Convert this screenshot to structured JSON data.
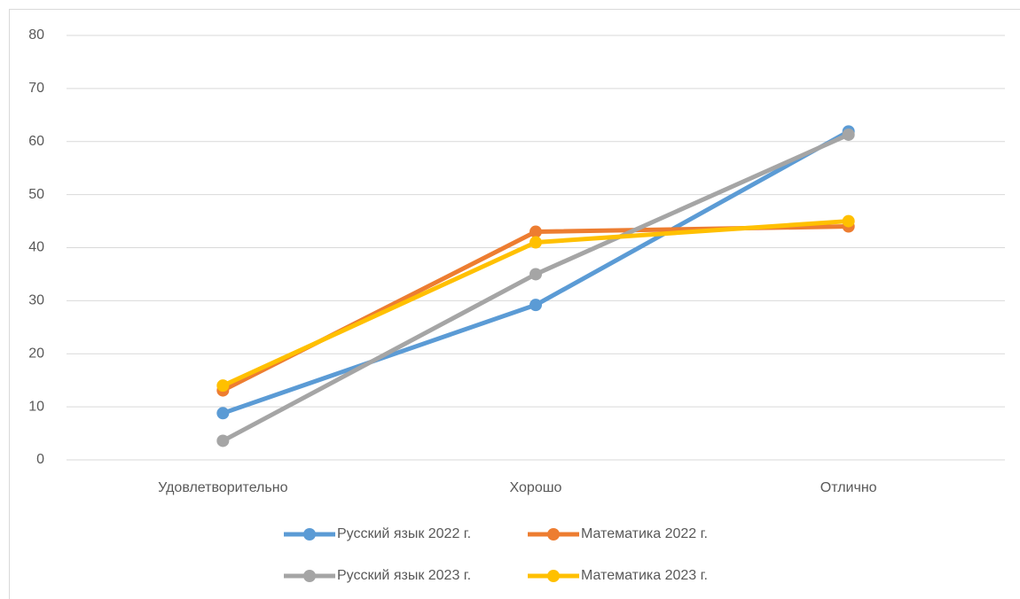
{
  "chart_data": {
    "type": "line",
    "categories": [
      "Удовлетворительно",
      "Хорошо",
      "Отлично"
    ],
    "series": [
      {
        "name": "Русский язык 2022 г.",
        "color": "#5b9bd5",
        "values": [
          8.8,
          29.2,
          61.9
        ]
      },
      {
        "name": "Математика 2022 г.",
        "color": "#ed7d31",
        "values": [
          13.1,
          43,
          44
        ]
      },
      {
        "name": "Русский язык 2023 г.",
        "color": "#a5a5a5",
        "values": [
          3.6,
          35,
          61.3
        ]
      },
      {
        "name": "Математика 2023 г.",
        "color": "#ffc000",
        "values": [
          14,
          41,
          45
        ]
      }
    ],
    "ylim": [
      0,
      80
    ],
    "yticks": [
      0,
      10,
      20,
      30,
      40,
      50,
      60,
      70,
      80
    ],
    "grid": true,
    "legend": "bottom"
  }
}
